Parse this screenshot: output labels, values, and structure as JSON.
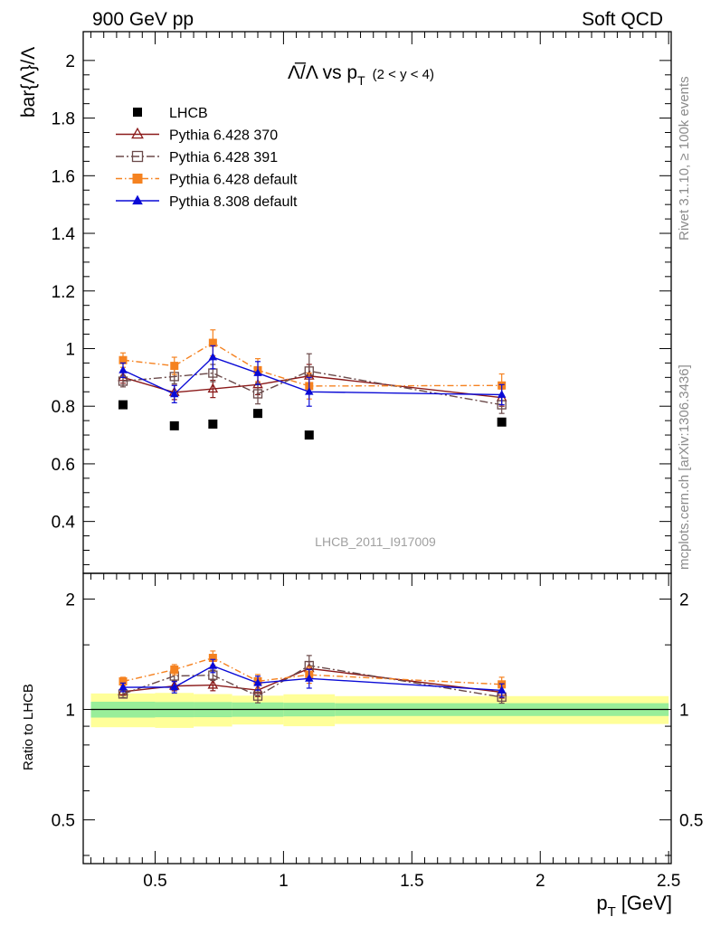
{
  "header": {
    "left": "900 GeV pp",
    "right": "Soft QCD"
  },
  "side_labels": {
    "rivet": "Rivet 3.1.10, ≥ 100k events",
    "mcplots": "mcplots.cern.ch [arXiv:1306.3436]"
  },
  "watermark": "LHCB_2011_I917009",
  "chart_data": {
    "type": "scatter",
    "title": {
      "main": "Λ̅/Λ vs p",
      "sub": "T",
      "range": "(2 < y < 4)"
    },
    "xlabel": {
      "main": "p",
      "sub": "T",
      "unit": "[GeV]"
    },
    "ylabel": "bar{Λ}/Λ",
    "ratio_ylabel": "Ratio to LHCB",
    "xlim": [
      0.22,
      2.51
    ],
    "ylim": [
      0.22,
      2.1
    ],
    "ratio_ylim": [
      0.38,
      2.35
    ],
    "ratio_log": true,
    "xticks": [
      {
        "v": 0.5,
        "label": "0.5"
      },
      {
        "v": 1,
        "label": "1"
      },
      {
        "v": 1.5,
        "label": "1.5"
      },
      {
        "v": 2,
        "label": "2"
      },
      {
        "v": 2.5,
        "label": "2.5"
      }
    ],
    "yticks": [
      {
        "v": 0.4,
        "label": "0.4"
      },
      {
        "v": 0.6,
        "label": "0.6"
      },
      {
        "v": 0.8,
        "label": "0.8"
      },
      {
        "v": 1.0,
        "label": "1"
      },
      {
        "v": 1.2,
        "label": "1.2"
      },
      {
        "v": 1.4,
        "label": "1.4"
      },
      {
        "v": 1.6,
        "label": "1.6"
      },
      {
        "v": 1.8,
        "label": "1.8"
      },
      {
        "v": 2.0,
        "label": "2"
      }
    ],
    "ratio_yticks": [
      {
        "v": 0.5,
        "label": "0.5"
      },
      {
        "v": 1,
        "label": "1"
      },
      {
        "v": 2,
        "label": "2"
      }
    ],
    "legend_position": "top-left",
    "data_bins": [
      0.25,
      0.5,
      0.65,
      0.8,
      1.0,
      1.2,
      2.5
    ],
    "data_series": {
      "name": "LHCB",
      "color": "#000000",
      "x": [
        0.375,
        0.575,
        0.725,
        0.9,
        1.1,
        1.85
      ],
      "y": [
        0.805,
        0.732,
        0.738,
        0.775,
        0.7,
        0.745
      ],
      "band_inner": [
        0.04,
        0.035,
        0.035,
        0.035,
        0.03,
        0.03
      ],
      "band_outer": [
        0.085,
        0.08,
        0.075,
        0.07,
        0.07,
        0.065
      ]
    },
    "series": [
      {
        "name": "Pythia 6.428 370",
        "color": "#8b1a1a",
        "marker": "triangle-open",
        "dash": "",
        "x": [
          0.375,
          0.575,
          0.725,
          0.9,
          1.1,
          1.85
        ],
        "y": [
          0.9,
          0.848,
          0.86,
          0.875,
          0.905,
          0.83
        ],
        "err": [
          0.02,
          0.025,
          0.03,
          0.035,
          0.04,
          0.03
        ]
      },
      {
        "name": "Pythia 6.428 391",
        "color": "#6b4a4a",
        "marker": "square-open",
        "dash": "9,3,2,3",
        "x": [
          0.375,
          0.575,
          0.725,
          0.9,
          1.1,
          1.85
        ],
        "y": [
          0.887,
          0.903,
          0.915,
          0.843,
          0.922,
          0.805
        ],
        "err": [
          0.02,
          0.025,
          0.03,
          0.035,
          0.06,
          0.03
        ]
      },
      {
        "name": "Pythia 6.428 default",
        "color": "#f58220",
        "marker": "square-filled",
        "dash": "7,3,1.5,3",
        "x": [
          0.375,
          0.575,
          0.725,
          0.9,
          1.1,
          1.85
        ],
        "y": [
          0.96,
          0.94,
          1.02,
          0.925,
          0.87,
          0.872
        ],
        "err": [
          0.025,
          0.03,
          0.045,
          0.04,
          0.045,
          0.04
        ]
      },
      {
        "name": "Pythia 8.308 default",
        "color": "#0a0ad6",
        "marker": "triangle-filled",
        "dash": "",
        "x": [
          0.375,
          0.575,
          0.725,
          0.9,
          1.1,
          1.85
        ],
        "y": [
          0.925,
          0.842,
          0.97,
          0.915,
          0.85,
          0.84
        ],
        "err": [
          0.025,
          0.03,
          0.04,
          0.04,
          0.05,
          0.035
        ]
      }
    ]
  }
}
